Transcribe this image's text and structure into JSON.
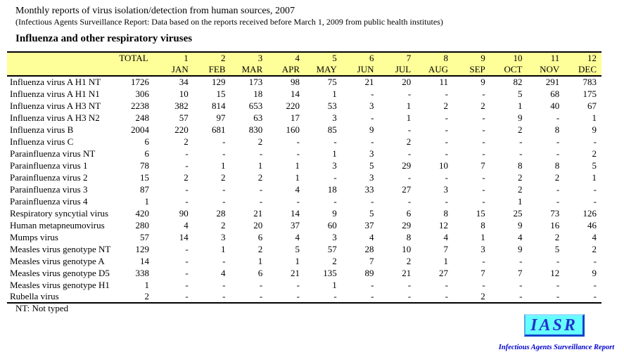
{
  "page": {
    "title": "Monthly reports of virus isolation/detection from human sources, 2007",
    "subtitle": "(Infectious Agents Surveillance Report: Data based on the reports received before March 1, 2009 from public health institutes)",
    "section_title": "Influenza and other respiratory viruses",
    "footnote": "NT: Not typed"
  },
  "table": {
    "total_label": "TOTAL",
    "months": [
      {
        "num": "1",
        "name": "JAN"
      },
      {
        "num": "2",
        "name": "FEB"
      },
      {
        "num": "3",
        "name": "MAR"
      },
      {
        "num": "4",
        "name": "APR"
      },
      {
        "num": "5",
        "name": "MAY"
      },
      {
        "num": "6",
        "name": "JUN"
      },
      {
        "num": "7",
        "name": "JUL"
      },
      {
        "num": "8",
        "name": "AUG"
      },
      {
        "num": "9",
        "name": "SEP"
      },
      {
        "num": "10",
        "name": "OCT"
      },
      {
        "num": "11",
        "name": "NOV"
      },
      {
        "num": "12",
        "name": "DEC"
      }
    ],
    "rows": [
      {
        "label": "Influenza virus A H1 NT",
        "total": "1726",
        "values": [
          "34",
          "129",
          "173",
          "98",
          "75",
          "21",
          "20",
          "11",
          "9",
          "82",
          "291",
          "783"
        ]
      },
      {
        "label": "Influenza virus A H1 N1",
        "total": "306",
        "values": [
          "10",
          "15",
          "18",
          "14",
          "1",
          "-",
          "-",
          "-",
          "-",
          "5",
          "68",
          "175"
        ]
      },
      {
        "label": "Influenza virus A H3 NT",
        "total": "2238",
        "values": [
          "382",
          "814",
          "653",
          "220",
          "53",
          "3",
          "1",
          "2",
          "2",
          "1",
          "40",
          "67"
        ]
      },
      {
        "label": "Influenza virus A H3 N2",
        "total": "248",
        "values": [
          "57",
          "97",
          "63",
          "17",
          "3",
          "-",
          "1",
          "-",
          "-",
          "9",
          "-",
          "1"
        ]
      },
      {
        "label": "Influenza virus B",
        "total": "2004",
        "values": [
          "220",
          "681",
          "830",
          "160",
          "85",
          "9",
          "-",
          "-",
          "-",
          "2",
          "8",
          "9"
        ]
      },
      {
        "label": "Influenza virus C",
        "total": "6",
        "values": [
          "2",
          "-",
          "2",
          "-",
          "-",
          "-",
          "2",
          "-",
          "-",
          "-",
          "-",
          "-"
        ]
      },
      {
        "label": "Parainfluenza virus NT",
        "total": "6",
        "values": [
          "-",
          "-",
          "-",
          "-",
          "1",
          "3",
          "-",
          "-",
          "-",
          "-",
          "-",
          "2"
        ]
      },
      {
        "label": "Parainfluenza virus 1",
        "total": "78",
        "values": [
          "-",
          "1",
          "1",
          "1",
          "3",
          "5",
          "29",
          "10",
          "7",
          "8",
          "8",
          "5"
        ]
      },
      {
        "label": "Parainfluenza virus 2",
        "total": "15",
        "values": [
          "2",
          "2",
          "2",
          "1",
          "-",
          "3",
          "-",
          "-",
          "-",
          "2",
          "2",
          "1"
        ]
      },
      {
        "label": "Parainfluenza virus 3",
        "total": "87",
        "values": [
          "-",
          "-",
          "-",
          "4",
          "18",
          "33",
          "27",
          "3",
          "-",
          "2",
          "-",
          "-"
        ]
      },
      {
        "label": "Parainfluenza virus 4",
        "total": "1",
        "values": [
          "-",
          "-",
          "-",
          "-",
          "-",
          "-",
          "-",
          "-",
          "-",
          "1",
          "-",
          "-"
        ]
      },
      {
        "label": "Respiratory syncytial virus",
        "total": "420",
        "values": [
          "90",
          "28",
          "21",
          "14",
          "9",
          "5",
          "6",
          "8",
          "15",
          "25",
          "73",
          "126"
        ]
      },
      {
        "label": "Human metapneumovirus",
        "total": "280",
        "values": [
          "4",
          "2",
          "20",
          "37",
          "60",
          "37",
          "29",
          "12",
          "8",
          "9",
          "16",
          "46"
        ]
      },
      {
        "label": "Mumps virus",
        "total": "57",
        "values": [
          "14",
          "3",
          "6",
          "4",
          "3",
          "4",
          "8",
          "4",
          "1",
          "4",
          "2",
          "4"
        ]
      },
      {
        "label": "Measles virus genotype NT",
        "total": "129",
        "values": [
          "-",
          "1",
          "2",
          "5",
          "57",
          "28",
          "10",
          "7",
          "3",
          "9",
          "5",
          "2"
        ]
      },
      {
        "label": "Measles virus genotype A",
        "total": "14",
        "values": [
          "-",
          "-",
          "1",
          "1",
          "2",
          "7",
          "2",
          "1",
          "-",
          "-",
          "-",
          "-"
        ]
      },
      {
        "label": "Measles virus genotype D5",
        "total": "338",
        "values": [
          "-",
          "4",
          "6",
          "21",
          "135",
          "89",
          "21",
          "27",
          "7",
          "7",
          "12",
          "9"
        ]
      },
      {
        "label": "Measles virus genotype H1",
        "total": "1",
        "values": [
          "-",
          "-",
          "-",
          "-",
          "1",
          "-",
          "-",
          "-",
          "-",
          "-",
          "-",
          "-"
        ]
      },
      {
        "label": "Rubella virus",
        "total": "2",
        "values": [
          "-",
          "-",
          "-",
          "-",
          "-",
          "-",
          "-",
          "-",
          "2",
          "-",
          "-",
          "-"
        ]
      }
    ]
  },
  "logo": {
    "acronym": "IASR",
    "caption": "Infectious Agents Surveillance Report"
  },
  "colors": {
    "header_bg": "#FFFF99",
    "logo_bg": "#66FFFF",
    "logo_text": "#2233CC",
    "caption_text": "#0000CC"
  }
}
